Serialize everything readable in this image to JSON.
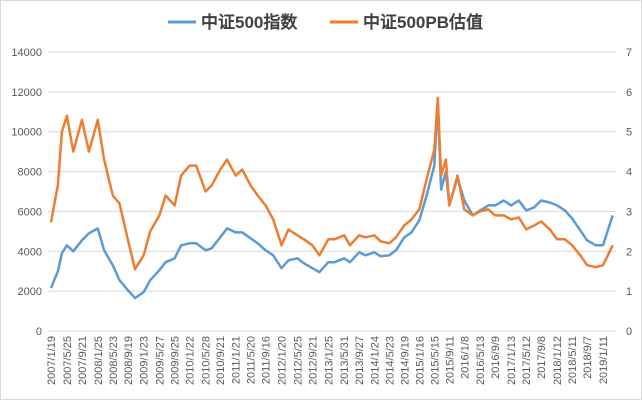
{
  "chart_data": {
    "type": "line",
    "title": "",
    "legend_position": "top",
    "grid": true,
    "y_left": {
      "min": 0,
      "max": 14000,
      "step": 2000
    },
    "y_right": {
      "min": 0,
      "max": 7,
      "step": 1
    },
    "x_tick_labels": [
      "2007/1/19",
      "2007/5/25",
      "2007/9/21",
      "2008/1/25",
      "2008/5/23",
      "2008/9/19",
      "2009/1/23",
      "2009/5/27",
      "2009/9/25",
      "2010/1/22",
      "2010/5/28",
      "2010/9/21",
      "2011/1/21",
      "2011/5/20",
      "2011/9/16",
      "2012/1/20",
      "2012/5/25",
      "2012/9/21",
      "2013/1/25",
      "2013/5/31",
      "2013/9/27",
      "2014/1/24",
      "2014/5/23",
      "2014/9/19",
      "2015/1/16",
      "2015/5/15",
      "2015/9/11",
      "2016/1/8",
      "2016/5/13",
      "2016/9/9",
      "2017/1/13",
      "2017/5/12",
      "2017/9/8",
      "2018/1/12",
      "2018/5/11",
      "2018/9/7",
      "2019/1/11"
    ],
    "x": [
      "2007/1/19",
      "2007/3/15",
      "2007/4/15",
      "2007/5/25",
      "2007/7/15",
      "2007/9/21",
      "2007/11/15",
      "2008/1/25",
      "2008/3/15",
      "2008/5/23",
      "2008/7/15",
      "2008/9/19",
      "2008/11/15",
      "2009/1/23",
      "2009/3/15",
      "2009/5/27",
      "2009/7/15",
      "2009/9/25",
      "2009/11/15",
      "2010/1/22",
      "2010/3/15",
      "2010/5/28",
      "2010/7/15",
      "2010/9/21",
      "2010/11/15",
      "2011/1/21",
      "2011/3/15",
      "2011/5/20",
      "2011/7/15",
      "2011/9/16",
      "2011/11/15",
      "2012/1/20",
      "2012/3/15",
      "2012/5/25",
      "2012/7/15",
      "2012/9/21",
      "2012/11/15",
      "2013/1/25",
      "2013/3/15",
      "2013/5/31",
      "2013/7/15",
      "2013/9/27",
      "2013/11/15",
      "2014/1/24",
      "2014/3/15",
      "2014/5/23",
      "2014/7/15",
      "2014/9/19",
      "2014/11/15",
      "2015/1/16",
      "2015/3/15",
      "2015/5/15",
      "2015/6/12",
      "2015/7/8",
      "2015/8/15",
      "2015/9/11",
      "2015/11/15",
      "2016/1/8",
      "2016/3/15",
      "2016/5/13",
      "2016/7/15",
      "2016/9/9",
      "2016/11/15",
      "2017/1/13",
      "2017/3/15",
      "2017/5/12",
      "2017/7/15",
      "2017/9/8",
      "2017/11/15",
      "2018/1/12",
      "2018/3/15",
      "2018/5/11",
      "2018/7/15",
      "2018/9/7",
      "2018/11/15",
      "2019/1/11",
      "2019/3/29"
    ],
    "series": [
      {
        "name": "中证500指数",
        "axis": "left",
        "color": "#5B9BD5",
        "values": [
          2150,
          3000,
          3900,
          4300,
          4000,
          4550,
          4900,
          5150,
          4050,
          3300,
          2550,
          2050,
          1650,
          1950,
          2550,
          3050,
          3450,
          3650,
          4300,
          4400,
          4400,
          4050,
          4150,
          4700,
          5150,
          4950,
          4950,
          4650,
          4400,
          4050,
          3800,
          3150,
          3550,
          3650,
          3400,
          3150,
          2950,
          3450,
          3450,
          3650,
          3450,
          3950,
          3800,
          3950,
          3750,
          3800,
          4050,
          4700,
          4950,
          5550,
          6800,
          8300,
          11500,
          7100,
          8000,
          6300,
          7700,
          6550,
          5800,
          6050,
          6300,
          6300,
          6550,
          6300,
          6550,
          6050,
          6200,
          6550,
          6450,
          6300,
          6050,
          5650,
          5050,
          4550,
          4300,
          4300,
          5800
        ]
      },
      {
        "name": "中证500PB估值",
        "axis": "right",
        "color": "#ED7D31",
        "values": [
          2.73,
          3.66,
          5.0,
          5.4,
          4.5,
          5.3,
          4.5,
          5.3,
          4.3,
          3.4,
          3.2,
          2.3,
          1.55,
          1.9,
          2.5,
          2.9,
          3.4,
          3.15,
          3.9,
          4.15,
          4.15,
          3.5,
          3.65,
          4.05,
          4.3,
          3.9,
          4.05,
          3.65,
          3.4,
          3.15,
          2.8,
          2.15,
          2.55,
          2.4,
          2.3,
          2.15,
          1.9,
          2.3,
          2.3,
          2.4,
          2.15,
          2.4,
          2.35,
          2.4,
          2.25,
          2.2,
          2.35,
          2.65,
          2.8,
          3.05,
          3.8,
          4.55,
          5.85,
          3.9,
          4.3,
          3.15,
          3.9,
          3.05,
          2.9,
          3.0,
          3.05,
          2.9,
          2.9,
          2.8,
          2.85,
          2.55,
          2.65,
          2.75,
          2.55,
          2.3,
          2.3,
          2.15,
          1.9,
          1.65,
          1.6,
          1.65,
          2.15
        ]
      }
    ]
  }
}
